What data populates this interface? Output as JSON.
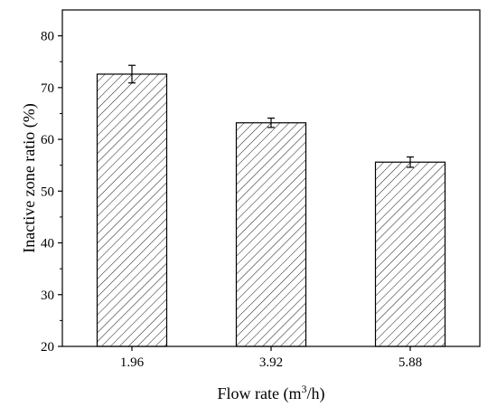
{
  "chart_data": {
    "type": "bar",
    "categories": [
      "1.96",
      "3.92",
      "5.88"
    ],
    "values": [
      72.6,
      63.2,
      55.6
    ],
    "errors": [
      1.7,
      0.9,
      1.0
    ],
    "xlabel": "Flow rate (m3/h)",
    "xlabel_parts": {
      "base": "Flow rate (m",
      "sup": "3",
      "tail": "/h)"
    },
    "ylabel": "Inactive zone ratio (%)",
    "ylim": [
      20,
      85
    ],
    "yticks": [
      20,
      30,
      40,
      50,
      60,
      70,
      80
    ],
    "bar_fill": "hatched",
    "bar_color": "#000000",
    "grid": false,
    "legend": "none"
  }
}
